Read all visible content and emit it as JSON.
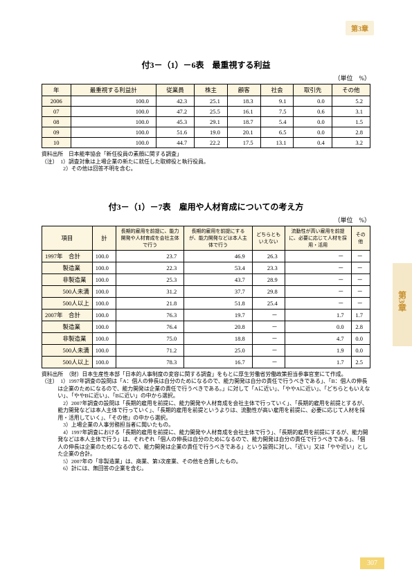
{
  "chapter_badge": "第3章",
  "side_tab": "第3章",
  "page_number": "307",
  "table1": {
    "title": "付3－（1）－6表　最重視する利益",
    "unit": "（単位　%）",
    "columns": [
      "年",
      "最重視する利益計",
      "従業員",
      "株主",
      "顧客",
      "社会",
      "取引先",
      "その他"
    ],
    "rows": [
      [
        "2006",
        "100.0",
        "42.3",
        "25.1",
        "18.3",
        "9.1",
        "0.0",
        "5.2"
      ],
      [
        "07",
        "100.0",
        "47.2",
        "25.5",
        "16.1",
        "7.5",
        "0.6",
        "3.1"
      ],
      [
        "08",
        "100.0",
        "45.3",
        "29.1",
        "18.7",
        "5.4",
        "0.0",
        "1.5"
      ],
      [
        "09",
        "100.0",
        "51.6",
        "19.0",
        "20.1",
        "6.5",
        "0.0",
        "2.8"
      ],
      [
        "10",
        "100.0",
        "44.7",
        "22.2",
        "17.5",
        "13.1",
        "0.4",
        "3.2"
      ]
    ],
    "source": "資料出所　日本能率協会「新任役員の素顔に関する調査」",
    "note1": "（注）　1）調査対象は上場企業の新たに就任した取締役と執行役員。",
    "note2": "　　　　2）その他は回答不明を含む。"
  },
  "table2": {
    "title": "付3－（1）－7表　雇用や人材育成についての考え方",
    "unit": "（単位　%）",
    "columns": [
      "項目",
      "計",
      "長期的雇用を前提に、能力開発や人材育成を会社主体で行う",
      "長期的雇用を前提にするが、能力開発などは本人主体で行う",
      "どちらともいえない",
      "流動性が高い雇用を前提に、必要に応じて人材を採用・活用",
      "その他"
    ],
    "rows": [
      [
        "1997年　合計",
        "100.0",
        "23.7",
        "46.9",
        "26.3",
        "－",
        "－"
      ],
      [
        "　　　製造業",
        "100.0",
        "22.3",
        "53.4",
        "23.3",
        "－",
        "－"
      ],
      [
        "　　　非製造業",
        "100.0",
        "25.3",
        "43.7",
        "28.9",
        "－",
        "－"
      ],
      [
        "　　　500人未満",
        "100.0",
        "31.2",
        "37.7",
        "29.8",
        "－",
        "－"
      ],
      [
        "　　　500人以上",
        "100.0",
        "21.8",
        "51.8",
        "25.4",
        "－",
        "－"
      ],
      [
        "2007年　合計",
        "100.0",
        "76.3",
        "19.7",
        "－",
        "1.7",
        "1.7"
      ],
      [
        "　　　製造業",
        "100.0",
        "76.4",
        "20.8",
        "－",
        "0.0",
        "2.8"
      ],
      [
        "　　　非製造業",
        "100.0",
        "75.0",
        "18.8",
        "－",
        "4.7",
        "0.0"
      ],
      [
        "　　　500人未満",
        "100.0",
        "71.2",
        "25.0",
        "－",
        "1.9",
        "0.0"
      ],
      [
        "　　　500人以上",
        "100.0",
        "78.3",
        "16.7",
        "－",
        "1.7",
        "2.5"
      ]
    ],
    "source": "資料出所　（財）日本生産性本部「日本的人事制度の変容に関する調査」をもとに厚生労働省労働政策担当参事官室にて作成。",
    "notes": [
      "（注）　1）1997年調査の設問は「A：個人の伸長は自分のためになるので、能力開発は自分の責任で行うべきである」、「B：個人の伸長は企業のためになるので、能力開発は企業の責任で行うべきである。」に対して「Aに近い」、「ややAに近い」、「どちらともいえない」、「ややBに近い」、「Bに近い」の中から選択。",
      "　　　　2）2007年調査の設問は「長期的雇用を前提に、能力開発や人材育成を会社主体で行っていく」、「長期的雇用を前提とするが、能力開発などは本人主体で行っていく」、「長期的雇用を前提というよりは、流動性が高い雇用を前提に、必要に応じて人材を採用・活用していく」、「その他」の中から選択。",
      "　　　　3）上場企業の人事労務担当者に聞いたもの。",
      "　　　　4）1997年調査における「長期的雇用を前提に、能力開発や人材育成を会社主体で行う」、「長期的雇用を前提にするが、能力開発などは本人主体で行う」は、それぞれ「個人の伸長は自分のためになるので、能力開発は自分の責任で行うべきである」、「個人の伸長は企業のためになるので、能力開発は企業の責任で行うべきである」という設問に対し、「近い」又は「やや近い」とした企業の合計。",
      "　　　　5）2007年の「非製造業」は、商業、第3次産業、その他を合算したもの。",
      "　　　　6）計には、無回答の企業を含む。"
    ]
  }
}
